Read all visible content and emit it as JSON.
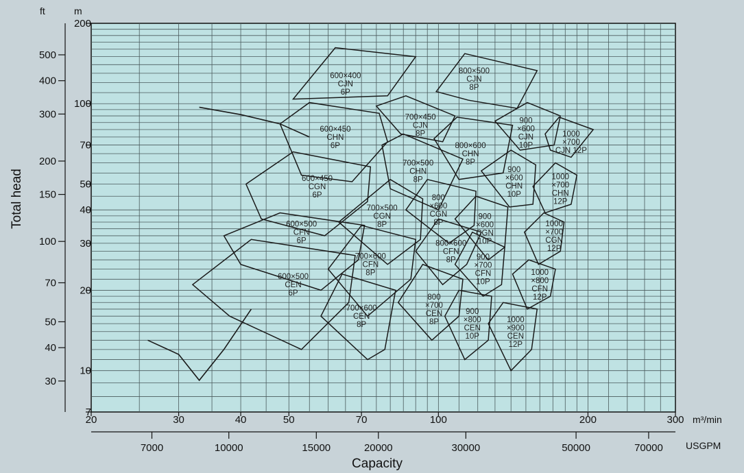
{
  "chart_data": {
    "type": "pump-selection-chart",
    "ylabel": "Total head",
    "xlabel": "Capacity",
    "y_units_left": "ft",
    "y_units_right": "m",
    "x_units_top": "m³/min",
    "x_units_bottom": "USGPM",
    "y_scale": "log",
    "x_scale": "log",
    "xlim_m3min": [
      20,
      300
    ],
    "ylim_m": [
      7,
      200
    ],
    "x_ticks_m3min": [
      {
        "value": 20,
        "label": "20"
      },
      {
        "value": 30,
        "label": "30"
      },
      {
        "value": 40,
        "label": "40"
      },
      {
        "value": 50,
        "label": "50"
      },
      {
        "value": 70,
        "label": "70"
      },
      {
        "value": 100,
        "label": "100"
      },
      {
        "value": 200,
        "label": "200"
      },
      {
        "value": 300,
        "label": "300"
      }
    ],
    "x_ticks_usgpm": [
      {
        "value": 7000,
        "label": "7000"
      },
      {
        "value": 10000,
        "label": "10000"
      },
      {
        "value": 15000,
        "label": "15000"
      },
      {
        "value": 20000,
        "label": "20000"
      },
      {
        "value": 30000,
        "label": "30000"
      },
      {
        "value": 50000,
        "label": "50000"
      },
      {
        "value": 70000,
        "label": "70000"
      }
    ],
    "y_ticks_m": [
      {
        "value": 7,
        "label": "7"
      },
      {
        "value": 10,
        "label": "10"
      },
      {
        "value": 20,
        "label": "20"
      },
      {
        "value": 30,
        "label": "30"
      },
      {
        "value": 40,
        "label": "40"
      },
      {
        "value": 50,
        "label": "50"
      },
      {
        "value": 70,
        "label": "70"
      },
      {
        "value": 100,
        "label": "100"
      },
      {
        "value": 200,
        "label": "200"
      }
    ],
    "y_ticks_ft": [
      {
        "value": 30,
        "label": "30"
      },
      {
        "value": 40,
        "label": "40"
      },
      {
        "value": 50,
        "label": "50"
      },
      {
        "value": 70,
        "label": "70"
      },
      {
        "value": 100,
        "label": "100"
      },
      {
        "value": 150,
        "label": "150"
      },
      {
        "value": 200,
        "label": "200"
      },
      {
        "value": 300,
        "label": "300"
      },
      {
        "value": 400,
        "label": "400"
      },
      {
        "value": 500,
        "label": "500"
      }
    ],
    "grid": true,
    "regions": [
      {
        "label": [
          "600×400",
          "CJN",
          "6P"
        ],
        "center": [
          65,
          119
        ],
        "poly": [
          [
            51,
            104
          ],
          [
            62,
            162
          ],
          [
            90,
            150
          ],
          [
            79,
            107
          ]
        ]
      },
      {
        "label": [
          "600×450",
          "CHN",
          "6P"
        ],
        "center": [
          62,
          75
        ],
        "poly": [
          [
            48,
            84
          ],
          [
            55,
            101
          ],
          [
            76,
            92
          ],
          [
            79,
            72
          ],
          [
            67,
            51
          ],
          [
            53,
            54
          ]
        ]
      },
      {
        "label": [
          "600×450",
          "CGN",
          "6P"
        ],
        "center": [
          57,
          49
        ],
        "poly": [
          [
            41,
            50
          ],
          [
            51,
            66
          ],
          [
            73,
            58
          ],
          [
            72,
            43
          ],
          [
            59,
            32
          ],
          [
            44,
            37
          ]
        ]
      },
      {
        "label": [
          "600×500",
          "CFN",
          "6P"
        ],
        "center": [
          53,
          33
        ],
        "poly": [
          [
            37,
            32
          ],
          [
            48,
            39
          ],
          [
            71,
            35
          ],
          [
            69,
            26
          ],
          [
            58,
            20
          ],
          [
            40,
            25
          ]
        ]
      },
      {
        "label": [
          "600×500",
          "CEN",
          "6P"
        ],
        "center": [
          51,
          21
        ],
        "poly": [
          [
            32,
            21
          ],
          [
            42,
            31
          ],
          [
            68,
            27
          ],
          [
            66,
            18
          ],
          [
            53,
            12
          ],
          [
            38,
            16
          ]
        ]
      },
      {
        "label": [
          "700×450",
          "CJN",
          "8P"
        ],
        "center": [
          92,
          83
        ],
        "poly": [
          [
            75,
            98
          ],
          [
            86,
            107
          ],
          [
            108,
            90
          ],
          [
            102,
            72
          ],
          [
            84,
            77
          ]
        ]
      },
      {
        "label": [
          "700×500",
          "CHN",
          "8P"
        ],
        "center": [
          91,
          56
        ],
        "poly": [
          [
            77,
            70
          ],
          [
            85,
            77
          ],
          [
            112,
            62
          ],
          [
            100,
            40
          ],
          [
            80,
            48
          ]
        ]
      },
      {
        "label": [
          "700×500",
          "CGN",
          "8P"
        ],
        "center": [
          77,
          38
        ],
        "poly": [
          [
            63,
            36
          ],
          [
            80,
            52
          ],
          [
            93,
            44
          ],
          [
            92,
            31
          ],
          [
            79,
            25
          ]
        ]
      },
      {
        "label": [
          "700×600",
          "CFN",
          "8P"
        ],
        "center": [
          73,
          25
        ],
        "poly": [
          [
            60,
            24
          ],
          [
            70,
            35
          ],
          [
            90,
            31
          ],
          [
            88,
            22
          ],
          [
            72,
            16
          ]
        ]
      },
      {
        "label": [
          "700×600",
          "CEN",
          "8P"
        ],
        "center": [
          70,
          16
        ],
        "poly": [
          [
            58,
            16
          ],
          [
            64,
            23
          ],
          [
            82,
            20
          ],
          [
            78,
            12
          ],
          [
            72,
            11
          ]
        ]
      },
      {
        "label": [
          "800×500",
          "CJN",
          "8P"
        ],
        "center": [
          118,
          124
        ],
        "poly": [
          [
            99,
            111
          ],
          [
            113,
            154
          ],
          [
            158,
            133
          ],
          [
            144,
            96
          ],
          [
            115,
            103
          ]
        ]
      },
      {
        "label": [
          "800×600",
          "CHN",
          "8P"
        ],
        "center": [
          116,
          65
        ],
        "poly": [
          [
            98,
            74
          ],
          [
            109,
            89
          ],
          [
            141,
            83
          ],
          [
            135,
            55
          ],
          [
            110,
            52
          ]
        ]
      },
      {
        "label": [
          "800",
          "×600",
          "CGN",
          "8P"
        ],
        "center": [
          100,
          40
        ],
        "poly": [
          [
            86,
            40
          ],
          [
            95,
            52
          ],
          [
            119,
            47
          ],
          [
            118,
            35
          ],
          [
            105,
            30
          ]
        ]
      },
      {
        "label": [
          "800×600",
          "CFN",
          "8P"
        ],
        "center": [
          106,
          28
        ],
        "poly": [
          [
            90,
            28
          ],
          [
            100,
            37
          ],
          [
            122,
            33
          ],
          [
            114,
            25
          ],
          [
            102,
            21
          ]
        ]
      },
      {
        "label": [
          "800",
          "×700",
          "CEN",
          "8P"
        ],
        "center": [
          98,
          17
        ],
        "poly": [
          [
            83,
            18
          ],
          [
            93,
            25
          ],
          [
            112,
            22
          ],
          [
            110,
            16
          ],
          [
            97,
            13
          ]
        ]
      },
      {
        "label": [
          "900",
          "×600",
          "CJN",
          "10P"
        ],
        "center": [
          150,
          78
        ],
        "poly": [
          [
            130,
            86
          ],
          [
            151,
            101
          ],
          [
            176,
            90
          ],
          [
            171,
            70
          ],
          [
            146,
            67
          ]
        ]
      },
      {
        "label": [
          "900",
          "×600",
          "CHN",
          "10P"
        ],
        "center": [
          142,
          51
        ],
        "poly": [
          [
            122,
            56
          ],
          [
            140,
            67
          ],
          [
            157,
            59
          ],
          [
            155,
            42
          ],
          [
            139,
            41
          ]
        ]
      },
      {
        "label": [
          "900",
          "×600",
          "CGN",
          "10P"
        ],
        "center": [
          124,
          34
        ],
        "poly": [
          [
            108,
            37
          ],
          [
            119,
            45
          ],
          [
            138,
            41
          ],
          [
            136,
            29
          ],
          [
            126,
            26
          ]
        ]
      },
      {
        "label": [
          "900",
          "×700",
          "CFN",
          "10P"
        ],
        "center": [
          123,
          24
        ],
        "poly": [
          [
            108,
            25
          ],
          [
            117,
            33
          ],
          [
            136,
            29
          ],
          [
            134,
            21
          ],
          [
            123,
            19
          ]
        ]
      },
      {
        "label": [
          "900",
          "×800",
          "CEN",
          "10P"
        ],
        "center": [
          117,
          15
        ],
        "poly": [
          [
            103,
            16
          ],
          [
            110,
            20
          ],
          [
            128,
            19
          ],
          [
            126,
            13
          ],
          [
            113,
            11
          ]
        ]
      },
      {
        "label": [
          "1000",
          "×700",
          "CJN 12P"
        ],
        "center": [
          185,
          72
        ],
        "poly": [
          [
            164,
            77
          ],
          [
            175,
            89
          ],
          [
            205,
            80
          ],
          [
            185,
            63
          ],
          [
            168,
            67
          ]
        ]
      },
      {
        "label": [
          "1000",
          "×700",
          "CHN",
          "12P"
        ],
        "center": [
          176,
          48
        ],
        "poly": [
          [
            155,
            49
          ],
          [
            172,
            60
          ],
          [
            190,
            54
          ],
          [
            185,
            42
          ],
          [
            164,
            39
          ]
        ]
      },
      {
        "label": [
          "1000",
          "×700",
          "CGN",
          "12P"
        ],
        "center": [
          171,
          32
        ],
        "poly": [
          [
            149,
            33
          ],
          [
            163,
            39
          ],
          [
            179,
            36
          ],
          [
            176,
            28
          ],
          [
            159,
            25
          ]
        ]
      },
      {
        "label": [
          "1000",
          "×800",
          "CFN",
          "12P"
        ],
        "center": [
          160,
          21
        ],
        "poly": [
          [
            141,
            23
          ],
          [
            152,
            26
          ],
          [
            172,
            24
          ],
          [
            168,
            19
          ],
          [
            151,
            17
          ]
        ]
      },
      {
        "label": [
          "1000",
          "×900",
          "CEN",
          "12P"
        ],
        "center": [
          143,
          14
        ],
        "poly": [
          [
            126,
            15
          ],
          [
            135,
            18
          ],
          [
            158,
            17
          ],
          [
            154,
            12
          ],
          [
            140,
            10
          ]
        ]
      }
    ],
    "envelope": [
      {
        "name": "top-left curve",
        "points": [
          [
            33,
            97
          ],
          [
            40,
            91
          ],
          [
            48,
            84
          ],
          [
            55,
            75
          ]
        ]
      },
      {
        "name": "left lower curve",
        "points": [
          [
            26,
            13
          ],
          [
            30,
            11.5
          ],
          [
            33,
            9.2
          ],
          [
            37,
            12
          ],
          [
            42,
            17
          ]
        ]
      }
    ]
  }
}
